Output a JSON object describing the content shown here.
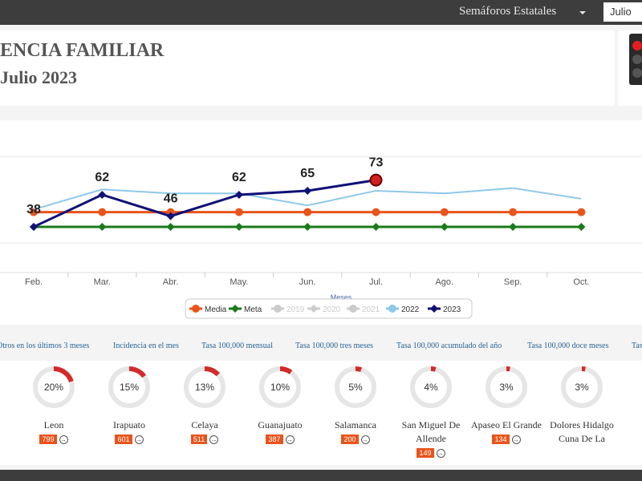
{
  "header": {
    "menu": "Semáforos Estatales",
    "month": "Julio"
  },
  "title": "ENCIA FAMILIAR",
  "subtitle": "Julio 2023",
  "chart_data": {
    "type": "line",
    "x_label": "Meses",
    "categories": [
      "Feb.",
      "Mar.",
      "Abr.",
      "May.",
      "Jun.",
      "Jul.",
      "Ago.",
      "Sep.",
      "Oct."
    ],
    "ylim": [
      0,
      100
    ],
    "series": [
      {
        "name": "Media",
        "color": "#e8541b",
        "values": [
          49,
          49,
          49,
          49,
          49,
          49,
          49,
          49,
          49
        ]
      },
      {
        "name": "Meta",
        "color": "#1a7a1a",
        "values": [
          38,
          38,
          38,
          38,
          38,
          38,
          38,
          38,
          38
        ]
      },
      {
        "name": "2022",
        "color": "#8ec8ea",
        "values": [
          51,
          66,
          63,
          63,
          54,
          65,
          63,
          67,
          59
        ]
      },
      {
        "name": "2023",
        "color": "#101077",
        "values": [
          38,
          62,
          46,
          62,
          65,
          73,
          null,
          null,
          null
        ]
      }
    ],
    "hidden_legend": [
      "2019",
      "2020",
      "2021"
    ],
    "data_labels_series": 3
  },
  "tabs": [
    "Otros en los últimos 3 meses",
    "Incidencia en el mes",
    "Tasa 100,000 mensual",
    "Tasa 100,000 tres meses",
    "Tasa 100,000 acumulado del año",
    "Tasa 100,000 doce meses",
    "Tas"
  ],
  "cards": [
    {
      "name": "Leon",
      "percent": 20,
      "percent_label": "20%",
      "count": 799
    },
    {
      "name": "Irapuato",
      "percent": 15,
      "percent_label": "15%",
      "count": 601
    },
    {
      "name": "Celaya",
      "percent": 13,
      "percent_label": "13%",
      "count": 511
    },
    {
      "name": "Guanajuato",
      "percent": 10,
      "percent_label": "10%",
      "count": 387
    },
    {
      "name": "Salamanca",
      "percent": 5,
      "percent_label": "5%",
      "count": 200
    },
    {
      "name": "San Miguel De Allende",
      "percent": 4,
      "percent_label": "4%",
      "count": 149
    },
    {
      "name": "Apaseo El Grande",
      "percent": 3,
      "percent_label": "3%",
      "count": 134
    },
    {
      "name": "Dolores Hidalgo Cuna De La",
      "percent": 3,
      "percent_label": "3%"
    }
  ]
}
